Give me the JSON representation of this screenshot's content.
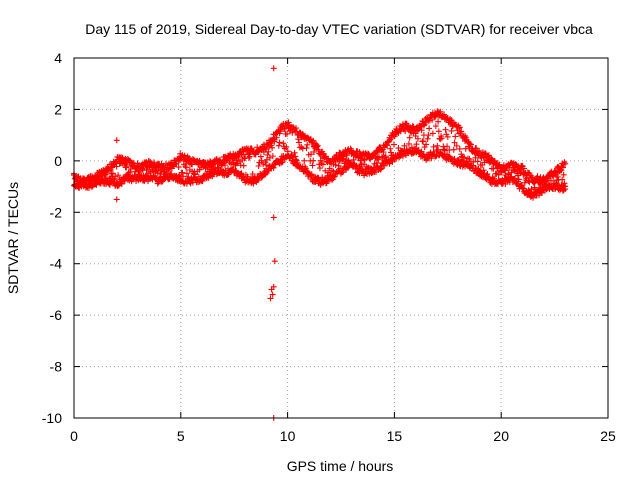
{
  "chart_data": {
    "type": "scatter",
    "title": "Day 115 of 2019, Sidereal Day-to-day VTEC variation (SDTVAR) for receiver vbca",
    "xlabel": "GPS time / hours",
    "ylabel": "SDTVAR / TECUs",
    "xlim": [
      0,
      25
    ],
    "ylim": [
      -10,
      4
    ],
    "xticks": [
      0,
      5,
      10,
      15,
      20,
      25
    ],
    "yticks": [
      4,
      2,
      0,
      -2,
      -4,
      -6,
      -8,
      -10
    ],
    "grid": true,
    "marker": "+",
    "colors": {
      "series": "#ff0000",
      "axes": "#000000",
      "grid": "#a0a0a0"
    },
    "series": [
      {
        "name": "SDTVAR",
        "description": "band of overlapping traces",
        "envelope": {
          "x": [
            0,
            0.5,
            1,
            1.5,
            2,
            2.5,
            3,
            3.5,
            4,
            4.5,
            5,
            5.5,
            6,
            6.5,
            7,
            7.5,
            8,
            8.5,
            9,
            9.5,
            10,
            10.5,
            11,
            11.5,
            12,
            12.5,
            13,
            13.5,
            14,
            14.5,
            15,
            15.5,
            16,
            16.5,
            17,
            17.5,
            18,
            18.5,
            19,
            19.5,
            20,
            20.5,
            21,
            21.5,
            22,
            22.5,
            23
          ],
          "upper": [
            -0.5,
            -0.7,
            -0.5,
            -0.3,
            0.2,
            0.1,
            -0.1,
            0.0,
            -0.1,
            -0.1,
            0.3,
            0.1,
            0.0,
            0.0,
            0.2,
            0.3,
            0.5,
            0.5,
            0.7,
            1.2,
            1.6,
            1.2,
            1.0,
            0.5,
            0.0,
            0.4,
            0.5,
            0.3,
            0.3,
            0.7,
            1.2,
            1.5,
            1.3,
            1.7,
            2.0,
            1.7,
            1.4,
            0.7,
            0.4,
            0.2,
            -0.2,
            0.0,
            -0.2,
            -0.6,
            -0.6,
            -0.3,
            0.0
          ],
          "lower": [
            -1.0,
            -1.1,
            -1.0,
            -0.9,
            -1.0,
            -0.8,
            -0.8,
            -0.8,
            -0.9,
            -0.7,
            -0.9,
            -0.9,
            -0.8,
            -0.6,
            -0.6,
            -0.5,
            -0.9,
            -0.9,
            -0.5,
            -0.2,
            0.1,
            -0.3,
            -0.7,
            -1.0,
            -0.8,
            -0.5,
            -0.3,
            -0.6,
            -0.5,
            -0.3,
            0.0,
            0.2,
            0.3,
            0.0,
            0.2,
            0.0,
            -0.2,
            -0.3,
            -0.6,
            -0.9,
            -1.0,
            -0.8,
            -1.2,
            -1.5,
            -1.2,
            -1.1,
            -1.2
          ]
        },
        "outliers": [
          {
            "x": 9.35,
            "y": 3.6
          },
          {
            "x": 9.35,
            "y": -2.2
          },
          {
            "x": 9.4,
            "y": -3.9
          },
          {
            "x": 9.25,
            "y": -5.0
          },
          {
            "x": 9.3,
            "y": -5.2
          },
          {
            "x": 9.2,
            "y": -5.35
          },
          {
            "x": 9.35,
            "y": -4.9
          },
          {
            "x": 9.35,
            "y": -10.0
          },
          {
            "x": 2.0,
            "y": -1.5
          },
          {
            "x": 2.0,
            "y": 0.8
          }
        ]
      }
    ]
  }
}
